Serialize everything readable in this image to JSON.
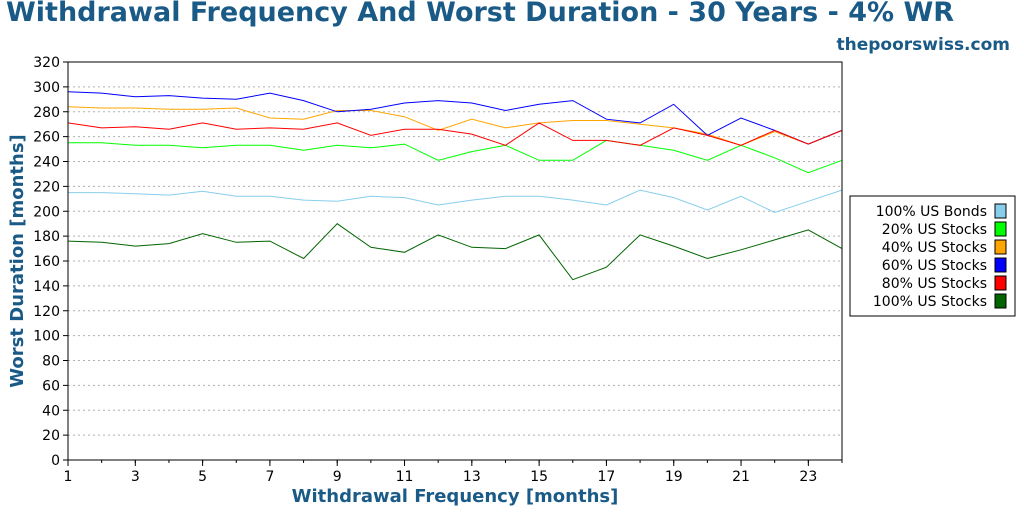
{
  "header": {
    "title": "Withdrawal Frequency And Worst Duration - 30 Years - 4% WR",
    "site": "thepoorswiss.com"
  },
  "chart_data": {
    "type": "line",
    "title": "Withdrawal Frequency And Worst Duration - 30 Years - 4% WR",
    "xlabel": "Withdrawal Frequency [months]",
    "ylabel": "Worst Duration [months]",
    "xlim": [
      1,
      24
    ],
    "ylim": [
      0,
      320
    ],
    "x_ticks": [
      1,
      3,
      5,
      7,
      9,
      11,
      13,
      15,
      17,
      19,
      21,
      23
    ],
    "y_ticks": [
      0,
      20,
      40,
      60,
      80,
      100,
      120,
      140,
      160,
      180,
      200,
      220,
      240,
      260,
      280,
      300,
      320
    ],
    "grid": "horizontal dotted",
    "legend_position": "right",
    "x": [
      1,
      2,
      3,
      4,
      5,
      6,
      7,
      8,
      9,
      10,
      11,
      12,
      13,
      14,
      15,
      16,
      17,
      18,
      19,
      20,
      21,
      22,
      23,
      24
    ],
    "series": [
      {
        "name": "100% US Bonds",
        "color": "#87ceeb",
        "values": [
          215,
          215,
          214,
          213,
          216,
          212,
          212,
          209,
          208,
          212,
          211,
          205,
          209,
          212,
          212,
          209,
          205,
          217,
          211,
          201,
          212,
          199,
          208,
          217
        ]
      },
      {
        "name": "20% US Stocks",
        "color": "#00ff00",
        "values": [
          255,
          255,
          253,
          253,
          251,
          253,
          253,
          249,
          253,
          251,
          254,
          241,
          248,
          253,
          241,
          241,
          257,
          253,
          249,
          241,
          253,
          243,
          231,
          241
        ]
      },
      {
        "name": "40% US Stocks",
        "color": "#ffa500",
        "values": [
          284,
          283,
          283,
          282,
          282,
          283,
          275,
          274,
          281,
          281,
          276,
          265,
          274,
          267,
          271,
          273,
          273,
          270,
          267,
          262,
          253,
          264,
          254,
          265
        ]
      },
      {
        "name": "60% US Stocks",
        "color": "#0000ff",
        "values": [
          296,
          295,
          292,
          293,
          291,
          290,
          295,
          289,
          280,
          282,
          287,
          289,
          287,
          281,
          286,
          289,
          274,
          271,
          286,
          261,
          275,
          265,
          254,
          265
        ]
      },
      {
        "name": "80% US Stocks",
        "color": "#ff0000",
        "values": [
          271,
          267,
          268,
          266,
          271,
          266,
          267,
          266,
          271,
          261,
          266,
          266,
          262,
          253,
          271,
          257,
          257,
          253,
          267,
          261,
          253,
          265,
          254,
          265
        ]
      },
      {
        "name": "100% US Stocks",
        "color": "#006400",
        "values": [
          176,
          175,
          172,
          174,
          182,
          175,
          176,
          162,
          190,
          171,
          167,
          181,
          171,
          170,
          181,
          145,
          155,
          181,
          172,
          162,
          169,
          177,
          185,
          170
        ]
      }
    ]
  }
}
